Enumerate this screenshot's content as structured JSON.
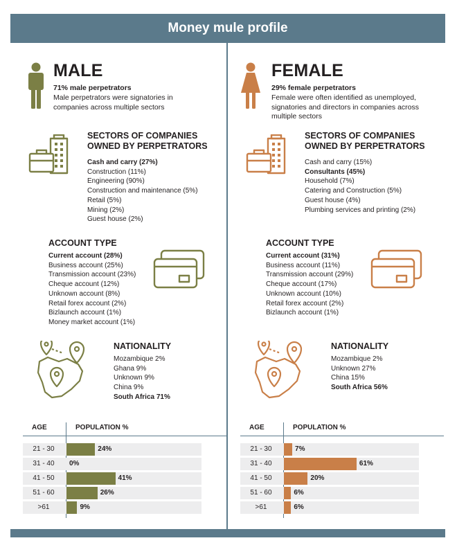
{
  "title": "Money mule profile",
  "colors": {
    "header": "#5b7a8b",
    "male": "#7b7f45",
    "female": "#c97f48",
    "row": "#ededee"
  },
  "male": {
    "icon": "male-person-icon",
    "title": "MALE",
    "stat": "71% male perpetrators",
    "desc": [
      "Male perpetrators were signatories in",
      "companies across multiple sectors"
    ],
    "sectors": {
      "heading": [
        "SECTORS OF COMPANIES",
        "OWNED BY PERPETRATORS"
      ],
      "icon": "buildings-briefcase-icon",
      "items": [
        {
          "text": "Cash and carry (27%)",
          "bold": true
        },
        {
          "text": "Construction (11%)",
          "bold": false
        },
        {
          "text": "Engineering (90%)",
          "bold": false
        },
        {
          "text": "Construction and maintenance (5%)",
          "bold": false
        },
        {
          "text": "Retail (5%)",
          "bold": false
        },
        {
          "text": "Mining (2%)",
          "bold": false
        },
        {
          "text": "Guest house (2%)",
          "bold": false
        }
      ]
    },
    "account": {
      "heading": "ACCOUNT TYPE",
      "icon": "cards-icon",
      "items": [
        {
          "text": "Current account (28%)",
          "bold": true
        },
        {
          "text": "Business account (25%)",
          "bold": false
        },
        {
          "text": "Transmission account (23%)",
          "bold": false
        },
        {
          "text": "Cheque account (12%)",
          "bold": false
        },
        {
          "text": "Unknown account (8%)",
          "bold": false
        },
        {
          "text": "Retail forex account (2%)",
          "bold": false
        },
        {
          "text": "Bizlaunch account (1%)",
          "bold": false
        },
        {
          "text": "Money market account (1%)",
          "bold": false
        }
      ]
    },
    "nationality": {
      "heading": "NATIONALITY",
      "icon": "map-pins-icon",
      "items": [
        {
          "text": "Mozambique 2%",
          "bold": false
        },
        {
          "text": "Ghana 9%",
          "bold": false
        },
        {
          "text": "Unknown 9%",
          "bold": false
        },
        {
          "text": "China 9%",
          "bold": false
        },
        {
          "text": "South Africa 71%",
          "bold": true
        }
      ]
    }
  },
  "female": {
    "icon": "female-person-icon",
    "title": "FEMALE",
    "stat": "29% female perpetrators",
    "desc": [
      "Female were often identified as unemployed,",
      "signatories and directors in companies across",
      "multiple sectors"
    ],
    "sectors": {
      "heading": [
        "SECTORS OF COMPANIES",
        "OWNED BY PERPETRATORS"
      ],
      "icon": "buildings-briefcase-icon",
      "items": [
        {
          "text": "Cash and carry (15%)",
          "bold": false
        },
        {
          "text": "Consultants (45%)",
          "bold": true
        },
        {
          "text": "Household (7%)",
          "bold": false
        },
        {
          "text": "Catering and Construction (5%)",
          "bold": false
        },
        {
          "text": "Guest house (4%)",
          "bold": false
        },
        {
          "text": "Plumbing services and printing (2%)",
          "bold": false
        }
      ]
    },
    "account": {
      "heading": "ACCOUNT TYPE",
      "icon": "cards-icon",
      "items": [
        {
          "text": "Current account (31%)",
          "bold": true
        },
        {
          "text": "Business account (11%)",
          "bold": false
        },
        {
          "text": "Transmission account (29%)",
          "bold": false
        },
        {
          "text": "Cheque account (17%)",
          "bold": false
        },
        {
          "text": "Unknown account (10%)",
          "bold": false
        },
        {
          "text": "Retail forex account (2%)",
          "bold": false
        },
        {
          "text": "Bizlaunch account (1%)",
          "bold": false
        }
      ]
    },
    "nationality": {
      "heading": "NATIONALITY",
      "icon": "map-pins-icon",
      "items": [
        {
          "text": "Mozambique 2%",
          "bold": false
        },
        {
          "text": "Unknown 27%",
          "bold": false
        },
        {
          "text": "China 15%",
          "bold": false
        },
        {
          "text": "South Africa 56%",
          "bold": true
        }
      ]
    }
  },
  "chart_data": [
    {
      "type": "bar",
      "title": "MALE",
      "xlabel": "AGE",
      "ylabel": "POPULATION %",
      "categories": [
        "21 - 30",
        "31 - 40",
        "41 - 50",
        "51 - 60",
        ">61"
      ],
      "values": [
        24,
        0,
        41,
        26,
        9
      ],
      "labels": [
        "24%",
        "0%",
        "41%",
        "26%",
        "9%"
      ],
      "ylim": [
        0,
        100
      ]
    },
    {
      "type": "bar",
      "title": "FEMALE",
      "xlabel": "AGE",
      "ylabel": "POPULATION %",
      "categories": [
        "21 - 30",
        "31 - 40",
        "41 - 50",
        "51 - 60",
        ">61"
      ],
      "values": [
        7,
        61,
        20,
        6,
        6
      ],
      "labels": [
        "7%",
        "61%",
        "20%",
        "6%",
        "6%"
      ],
      "ylim": [
        0,
        100
      ]
    }
  ]
}
